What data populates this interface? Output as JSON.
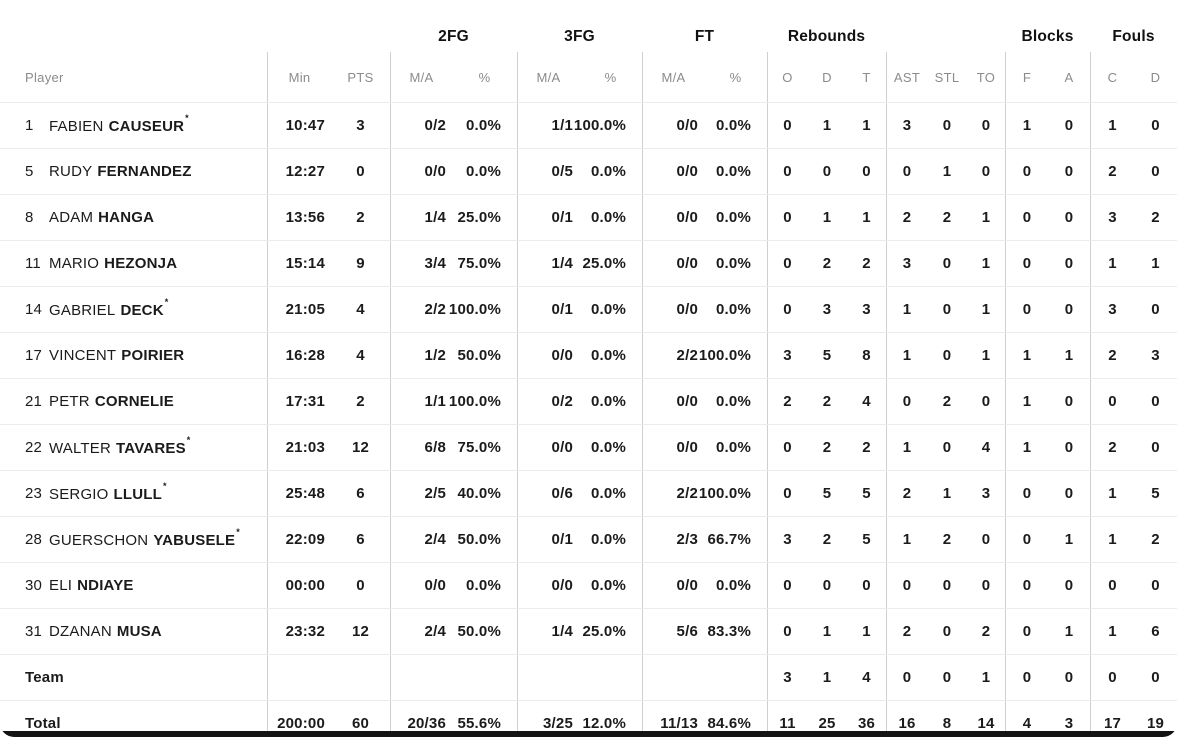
{
  "table": {
    "starter_mark": "*",
    "group_headers": {
      "fg2": "2FG",
      "fg3": "3FG",
      "ft": "FT",
      "rebounds": "Rebounds",
      "blocks": "Blocks",
      "fouls": "Fouls"
    },
    "columns": {
      "player": "Player",
      "min": "Min",
      "pts": "PTS",
      "ma": "M/A",
      "pct": "%",
      "reb_o": "O",
      "reb_d": "D",
      "reb_t": "T",
      "ast": "AST",
      "stl": "STL",
      "to": "TO",
      "blk_f": "F",
      "blk_a": "A",
      "foul_c": "C",
      "foul_d": "D"
    },
    "players": [
      {
        "num": "1",
        "first": "FABIEN",
        "last": "CAUSEUR",
        "starter": true,
        "min": "10:47",
        "pts": "3",
        "fg2_ma": "0/2",
        "fg2_pct": "0.0%",
        "fg3_ma": "1/1",
        "fg3_pct": "100.0%",
        "ft_ma": "0/0",
        "ft_pct": "0.0%",
        "reb_o": "0",
        "reb_d": "1",
        "reb_t": "1",
        "ast": "3",
        "stl": "0",
        "to": "0",
        "blk_f": "1",
        "blk_a": "0",
        "foul_c": "1",
        "foul_d": "0"
      },
      {
        "num": "5",
        "first": "RUDY",
        "last": "FERNANDEZ",
        "starter": false,
        "min": "12:27",
        "pts": "0",
        "fg2_ma": "0/0",
        "fg2_pct": "0.0%",
        "fg3_ma": "0/5",
        "fg3_pct": "0.0%",
        "ft_ma": "0/0",
        "ft_pct": "0.0%",
        "reb_o": "0",
        "reb_d": "0",
        "reb_t": "0",
        "ast": "0",
        "stl": "1",
        "to": "0",
        "blk_f": "0",
        "blk_a": "0",
        "foul_c": "2",
        "foul_d": "0"
      },
      {
        "num": "8",
        "first": "ADAM",
        "last": "HANGA",
        "starter": false,
        "min": "13:56",
        "pts": "2",
        "fg2_ma": "1/4",
        "fg2_pct": "25.0%",
        "fg3_ma": "0/1",
        "fg3_pct": "0.0%",
        "ft_ma": "0/0",
        "ft_pct": "0.0%",
        "reb_o": "0",
        "reb_d": "1",
        "reb_t": "1",
        "ast": "2",
        "stl": "2",
        "to": "1",
        "blk_f": "0",
        "blk_a": "0",
        "foul_c": "3",
        "foul_d": "2"
      },
      {
        "num": "11",
        "first": "MARIO",
        "last": "HEZONJA",
        "starter": false,
        "min": "15:14",
        "pts": "9",
        "fg2_ma": "3/4",
        "fg2_pct": "75.0%",
        "fg3_ma": "1/4",
        "fg3_pct": "25.0%",
        "ft_ma": "0/0",
        "ft_pct": "0.0%",
        "reb_o": "0",
        "reb_d": "2",
        "reb_t": "2",
        "ast": "3",
        "stl": "0",
        "to": "1",
        "blk_f": "0",
        "blk_a": "0",
        "foul_c": "1",
        "foul_d": "1"
      },
      {
        "num": "14",
        "first": "GABRIEL",
        "last": "DECK",
        "starter": true,
        "min": "21:05",
        "pts": "4",
        "fg2_ma": "2/2",
        "fg2_pct": "100.0%",
        "fg3_ma": "0/1",
        "fg3_pct": "0.0%",
        "ft_ma": "0/0",
        "ft_pct": "0.0%",
        "reb_o": "0",
        "reb_d": "3",
        "reb_t": "3",
        "ast": "1",
        "stl": "0",
        "to": "1",
        "blk_f": "0",
        "blk_a": "0",
        "foul_c": "3",
        "foul_d": "0"
      },
      {
        "num": "17",
        "first": "VINCENT",
        "last": "POIRIER",
        "starter": false,
        "min": "16:28",
        "pts": "4",
        "fg2_ma": "1/2",
        "fg2_pct": "50.0%",
        "fg3_ma": "0/0",
        "fg3_pct": "0.0%",
        "ft_ma": "2/2",
        "ft_pct": "100.0%",
        "reb_o": "3",
        "reb_d": "5",
        "reb_t": "8",
        "ast": "1",
        "stl": "0",
        "to": "1",
        "blk_f": "1",
        "blk_a": "1",
        "foul_c": "2",
        "foul_d": "3"
      },
      {
        "num": "21",
        "first": "PETR",
        "last": "CORNELIE",
        "starter": false,
        "min": "17:31",
        "pts": "2",
        "fg2_ma": "1/1",
        "fg2_pct": "100.0%",
        "fg3_ma": "0/2",
        "fg3_pct": "0.0%",
        "ft_ma": "0/0",
        "ft_pct": "0.0%",
        "reb_o": "2",
        "reb_d": "2",
        "reb_t": "4",
        "ast": "0",
        "stl": "2",
        "to": "0",
        "blk_f": "1",
        "blk_a": "0",
        "foul_c": "0",
        "foul_d": "0"
      },
      {
        "num": "22",
        "first": "WALTER",
        "last": "TAVARES",
        "starter": true,
        "min": "21:03",
        "pts": "12",
        "fg2_ma": "6/8",
        "fg2_pct": "75.0%",
        "fg3_ma": "0/0",
        "fg3_pct": "0.0%",
        "ft_ma": "0/0",
        "ft_pct": "0.0%",
        "reb_o": "0",
        "reb_d": "2",
        "reb_t": "2",
        "ast": "1",
        "stl": "0",
        "to": "4",
        "blk_f": "1",
        "blk_a": "0",
        "foul_c": "2",
        "foul_d": "0"
      },
      {
        "num": "23",
        "first": "SERGIO",
        "last": "LLULL",
        "starter": true,
        "min": "25:48",
        "pts": "6",
        "fg2_ma": "2/5",
        "fg2_pct": "40.0%",
        "fg3_ma": "0/6",
        "fg3_pct": "0.0%",
        "ft_ma": "2/2",
        "ft_pct": "100.0%",
        "reb_o": "0",
        "reb_d": "5",
        "reb_t": "5",
        "ast": "2",
        "stl": "1",
        "to": "3",
        "blk_f": "0",
        "blk_a": "0",
        "foul_c": "1",
        "foul_d": "5"
      },
      {
        "num": "28",
        "first": "GUERSCHON",
        "last": "YABUSELE",
        "starter": true,
        "min": "22:09",
        "pts": "6",
        "fg2_ma": "2/4",
        "fg2_pct": "50.0%",
        "fg3_ma": "0/1",
        "fg3_pct": "0.0%",
        "ft_ma": "2/3",
        "ft_pct": "66.7%",
        "reb_o": "3",
        "reb_d": "2",
        "reb_t": "5",
        "ast": "1",
        "stl": "2",
        "to": "0",
        "blk_f": "0",
        "blk_a": "1",
        "foul_c": "1",
        "foul_d": "2"
      },
      {
        "num": "30",
        "first": "ELI",
        "last": "NDIAYE",
        "starter": false,
        "min": "00:00",
        "pts": "0",
        "fg2_ma": "0/0",
        "fg2_pct": "0.0%",
        "fg3_ma": "0/0",
        "fg3_pct": "0.0%",
        "ft_ma": "0/0",
        "ft_pct": "0.0%",
        "reb_o": "0",
        "reb_d": "0",
        "reb_t": "0",
        "ast": "0",
        "stl": "0",
        "to": "0",
        "blk_f": "0",
        "blk_a": "0",
        "foul_c": "0",
        "foul_d": "0"
      },
      {
        "num": "31",
        "first": "DZANAN",
        "last": "MUSA",
        "starter": false,
        "min": "23:32",
        "pts": "12",
        "fg2_ma": "2/4",
        "fg2_pct": "50.0%",
        "fg3_ma": "1/4",
        "fg3_pct": "25.0%",
        "ft_ma": "5/6",
        "ft_pct": "83.3%",
        "reb_o": "0",
        "reb_d": "1",
        "reb_t": "1",
        "ast": "2",
        "stl": "0",
        "to": "2",
        "blk_f": "0",
        "blk_a": "1",
        "foul_c": "1",
        "foul_d": "6"
      }
    ],
    "team_row": {
      "label": "Team",
      "reb_o": "3",
      "reb_d": "1",
      "reb_t": "4",
      "ast": "0",
      "stl": "0",
      "to": "1",
      "blk_f": "0",
      "blk_a": "0",
      "foul_c": "0",
      "foul_d": "0"
    },
    "total_row": {
      "label": "Total",
      "min": "200:00",
      "pts": "60",
      "fg2_ma": "20/36",
      "fg2_pct": "55.6%",
      "fg3_ma": "3/25",
      "fg3_pct": "12.0%",
      "ft_ma": "11/13",
      "ft_pct": "84.6%",
      "reb_o": "11",
      "reb_d": "25",
      "reb_t": "36",
      "ast": "16",
      "stl": "8",
      "to": "14",
      "blk_f": "4",
      "blk_a": "3",
      "foul_c": "17",
      "foul_d": "19"
    }
  },
  "colors": {
    "text": "#1b1b1b",
    "muted": "#8b8b8b",
    "row_line": "#ececec",
    "divider": "#cfcfcf",
    "bottom_bar": "#131313"
  }
}
